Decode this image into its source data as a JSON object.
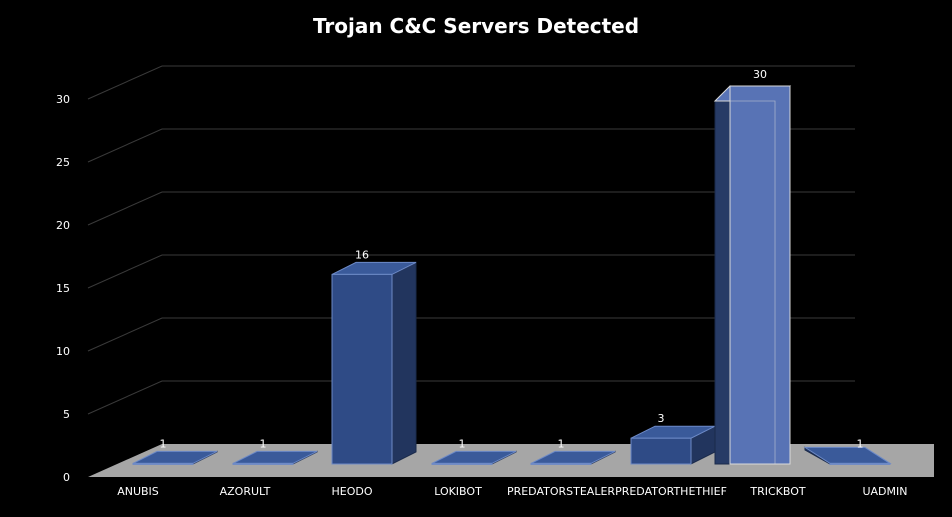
{
  "chart_data": {
    "type": "bar",
    "title": "Trojan C&C Servers Detected",
    "categories": [
      "ANUBIS",
      "AZORULT",
      "HEODO",
      "LOKIBOT",
      "PREDATORSTEALER",
      "PREDATORTHETHIEF",
      "TRICKBOT",
      "UADMIN"
    ],
    "values": [
      1,
      1,
      16,
      1,
      1,
      3,
      30,
      1
    ],
    "yticks": [
      0,
      5,
      10,
      15,
      20,
      25,
      30
    ],
    "ylim": [
      0,
      30
    ],
    "grid": true,
    "legend": "none",
    "highlight_index": 6,
    "colors": {
      "background": "#000000",
      "floor": "#a6a6a6",
      "gridline": "#3a3a3a",
      "bar_front": "#2f4b86",
      "bar_side": "#22355e",
      "bar_top": "#3a5a9a",
      "bar_highlight_front": "#5873b5",
      "bar_highlight_side": "#273b66",
      "bar_edge": "#d9d9d9",
      "text": "#ffffff"
    }
  }
}
